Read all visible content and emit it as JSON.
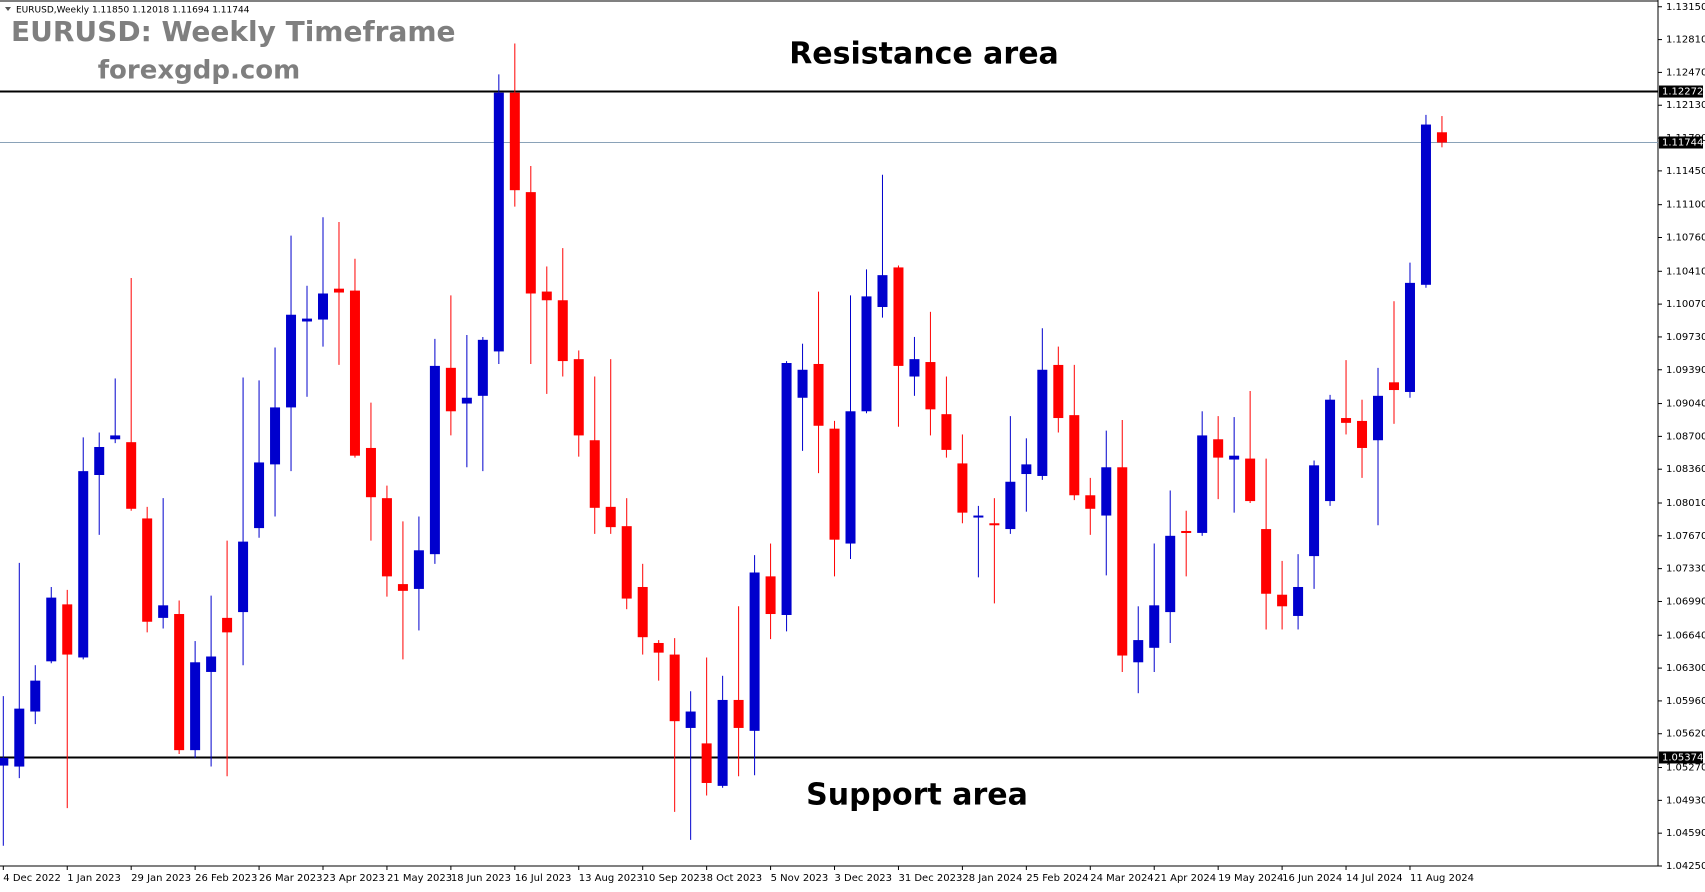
{
  "chart_data": {
    "type": "candlestick",
    "title": "EURUSD: Weekly Timeframe",
    "subtitle": "forexgdp.com",
    "symbol_info": "EURUSD,Weekly  1.11850 1.12018 1.11694 1.11744",
    "annotations": [
      "Resistance area",
      "Support area"
    ],
    "categories": [
      "4 Dec 2022",
      null,
      null,
      null,
      "1 Jan 2023",
      null,
      null,
      null,
      "29 Jan 2023",
      null,
      null,
      null,
      "26 Feb 2023",
      null,
      null,
      null,
      "26 Mar 2023",
      null,
      null,
      null,
      "23 Apr 2023",
      null,
      null,
      null,
      "21 May 2023",
      null,
      null,
      null,
      "18 Jun 2023",
      null,
      null,
      null,
      "16 Jul 2023",
      null,
      null,
      null,
      "13 Aug 2023",
      null,
      null,
      null,
      "10 Sep 2023",
      null,
      null,
      null,
      "8 Oct 2023",
      null,
      null,
      null,
      "5 Nov 2023",
      null,
      null,
      null,
      "3 Dec 2023",
      null,
      null,
      null,
      "31 Dec 2023",
      null,
      null,
      null,
      "28 Jan 2024",
      null,
      null,
      null,
      "25 Feb 2024",
      null,
      null,
      null,
      "24 Mar 2024",
      null,
      null,
      null,
      "21 Apr 2024",
      null,
      null,
      null,
      "19 May 2024",
      null,
      null,
      null,
      "16 Jun 2024",
      null,
      null,
      null,
      "14 Jul 2024",
      null,
      null,
      null,
      "11 Aug 2024",
      null,
      null
    ],
    "open": [
      1.0529,
      1.0528,
      1.0585,
      1.0637,
      1.0696,
      1.0641,
      1.083,
      1.0867,
      1.0864,
      1.0785,
      1.0682,
      1.0686,
      1.0545,
      1.0626,
      1.0682,
      1.0688,
      1.0775,
      1.0841,
      1.09,
      1.0989,
      1.0991,
      1.1023,
      1.1021,
      1.0858,
      1.0806,
      1.0717,
      1.0712,
      1.0748,
      1.0941,
      1.0904,
      1.0912,
      1.0958,
      1.1226,
      1.1123,
      1.102,
      1.1011,
      1.095,
      1.0866,
      1.0797,
      1.0777,
      1.0714,
      1.0656,
      1.0644,
      1.0568,
      1.0552,
      1.0508,
      1.0597,
      1.0565,
      1.0725,
      1.0685,
      1.091,
      1.0945,
      1.0878,
      1.0759,
      1.0896,
      1.1004,
      1.1045,
      1.0932,
      1.0947,
      1.0893,
      1.0842,
      1.0786,
      1.078,
      1.0774,
      1.0831,
      1.0829,
      1.0944,
      1.0892,
      1.0809,
      1.0788,
      1.0838,
      1.0636,
      1.0651,
      1.0688,
      1.0772,
      1.077,
      1.0867,
      1.0846,
      1.0847,
      1.0774,
      1.0706,
      1.0684,
      1.0746,
      1.0803,
      1.0889,
      1.0886,
      1.0866,
      1.0926,
      1.0916,
      1.1027,
      1.1185
    ],
    "high": [
      1.0601,
      1.0739,
      1.0633,
      1.0714,
      1.0711,
      1.0869,
      1.0874,
      1.093,
      1.1034,
      1.0797,
      1.0806,
      1.07,
      1.0658,
      1.0705,
      1.0762,
      1.0931,
      1.0928,
      1.0962,
      1.1078,
      1.1026,
      1.1097,
      1.1092,
      1.1054,
      1.0905,
      1.0819,
      1.0782,
      1.0787,
      1.0971,
      1.1016,
      1.0975,
      1.0973,
      1.1245,
      1.1277,
      1.115,
      1.1046,
      1.1065,
      1.0959,
      1.0932,
      1.095,
      1.0806,
      1.0738,
      1.0659,
      1.0661,
      1.0606,
      1.0641,
      1.0622,
      1.0694,
      1.0747,
      1.0759,
      1.0948,
      1.0966,
      1.102,
      1.0886,
      1.1016,
      1.1043,
      1.1141,
      1.1047,
      1.0973,
      1.0999,
      1.0932,
      1.0872,
      1.0798,
      1.0806,
      1.0891,
      1.0868,
      1.0982,
      1.0963,
      1.0944,
      1.0827,
      1.0876,
      1.0887,
      1.0694,
      1.0759,
      1.0814,
      1.0793,
      1.0896,
      1.0891,
      1.089,
      1.0917,
      1.0847,
      1.0741,
      1.0748,
      1.0845,
      1.0913,
      1.0949,
      1.0908,
      1.0941,
      1.101,
      1.105,
      1.1203,
      1.12018
    ],
    "low": [
      1.0446,
      1.0516,
      1.0572,
      1.0635,
      1.0485,
      1.0639,
      1.0768,
      1.0863,
      1.0793,
      1.0667,
      1.0671,
      1.0541,
      1.0537,
      1.0528,
      1.0518,
      1.0633,
      1.0765,
      1.0787,
      1.0834,
      1.0911,
      1.0963,
      1.0944,
      1.0848,
      1.0762,
      1.0704,
      1.0639,
      1.0669,
      1.0738,
      1.0871,
      1.0838,
      1.0834,
      1.0945,
      1.1108,
      1.0945,
      1.0914,
      1.0932,
      1.0849,
      1.0769,
      1.0769,
      1.0691,
      1.0644,
      1.0617,
      1.0481,
      1.0452,
      1.0498,
      1.0506,
      1.0518,
      1.0519,
      1.066,
      1.0668,
      1.0855,
      1.0832,
      1.0725,
      1.0743,
      1.0894,
      1.0993,
      1.088,
      1.0912,
      1.0871,
      1.0848,
      1.078,
      1.0724,
      1.0697,
      1.0769,
      1.0792,
      1.0825,
      1.0874,
      1.0804,
      1.0768,
      1.0726,
      1.0626,
      1.0604,
      1.0626,
      1.0656,
      1.0725,
      1.0767,
      1.0805,
      1.0791,
      1.0801,
      1.067,
      1.067,
      1.067,
      1.0712,
      1.0798,
      1.0872,
      1.0827,
      1.0778,
      1.0883,
      1.091,
      1.1024,
      1.11694
    ],
    "close": [
      1.0537,
      1.0588,
      1.0617,
      1.0703,
      1.0644,
      1.0834,
      1.0859,
      1.0871,
      1.0795,
      1.0678,
      1.0695,
      1.0545,
      1.0636,
      1.0642,
      1.0667,
      1.0761,
      1.0843,
      1.09,
      1.0996,
      1.0992,
      1.1018,
      1.1019,
      1.085,
      1.0807,
      1.0725,
      1.071,
      1.0752,
      1.0943,
      1.0896,
      1.091,
      1.097,
      1.1226,
      1.1125,
      1.1018,
      1.1011,
      1.0948,
      1.0871,
      1.0796,
      1.0776,
      1.0702,
      1.0662,
      1.0646,
      1.0575,
      1.0585,
      1.0511,
      1.0597,
      1.0568,
      1.0729,
      1.0686,
      1.0946,
      1.0939,
      1.0881,
      1.0763,
      1.0896,
      1.1015,
      1.1037,
      1.0943,
      1.095,
      1.0898,
      1.0856,
      1.0791,
      1.0788,
      1.0778,
      1.0823,
      1.0841,
      1.0939,
      1.0889,
      1.0809,
      1.0795,
      1.0838,
      1.0643,
      1.0659,
      1.0695,
      1.0767,
      1.077,
      1.0871,
      1.0848,
      1.085,
      1.0803,
      1.0707,
      1.0694,
      1.0714,
      1.084,
      1.0908,
      1.0884,
      1.0858,
      1.0912,
      1.0918,
      1.1029,
      1.1193,
      1.11744
    ],
    "up_color": "#0000cd",
    "down_color": "#ff0000",
    "levels": [
      1.12272,
      1.05374
    ],
    "level_color": "#000000",
    "bid": 1.11744,
    "bid_color": "#8aa2b8",
    "ylim": [
      1.0425,
      1.1322
    ],
    "yticks": [
      {
        "value": 1.1315,
        "label": "1.13150"
      },
      {
        "value": 1.1281,
        "label": "1.12810"
      },
      {
        "value": 1.1247,
        "label": "1.12470"
      },
      {
        "value": 1.1213,
        "label": "1.12130"
      },
      {
        "value": 1.1179,
        "label": "1.11790"
      },
      {
        "value": 1.1145,
        "label": "1.11450"
      },
      {
        "value": 1.111,
        "label": "1.11100"
      },
      {
        "value": 1.1076,
        "label": "1.10760"
      },
      {
        "value": 1.1041,
        "label": "1.10410"
      },
      {
        "value": 1.1007,
        "label": "1.10070"
      },
      {
        "value": 1.0973,
        "label": "1.09730"
      },
      {
        "value": 1.0939,
        "label": "1.09390"
      },
      {
        "value": 1.0904,
        "label": "1.09040"
      },
      {
        "value": 1.087,
        "label": "1.08700"
      },
      {
        "value": 1.0836,
        "label": "1.08360"
      },
      {
        "value": 1.0801,
        "label": "1.08010"
      },
      {
        "value": 1.0767,
        "label": "1.07670"
      },
      {
        "value": 1.0733,
        "label": "1.07330"
      },
      {
        "value": 1.0699,
        "label": "1.06990"
      },
      {
        "value": 1.0664,
        "label": "1.06640"
      },
      {
        "value": 1.063,
        "label": "1.06300"
      },
      {
        "value": 1.0596,
        "label": "1.05960"
      },
      {
        "value": 1.0562,
        "label": "1.05620"
      },
      {
        "value": 1.0527,
        "label": "1.05270"
      },
      {
        "value": 1.0493,
        "label": "1.04930"
      },
      {
        "value": 1.0459,
        "label": "1.04590"
      },
      {
        "value": 1.0425,
        "label": "1.04250"
      }
    ]
  }
}
